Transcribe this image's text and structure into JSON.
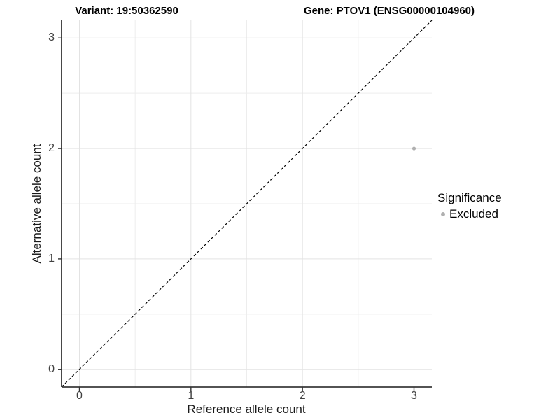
{
  "figure": {
    "background": "#ffffff"
  },
  "chart_data": {
    "type": "scatter",
    "titles": {
      "left": "Variant: 19:50362590",
      "right": "Gene: PTOV1 (ENSG00000104960)"
    },
    "xlabel": "Reference allele count",
    "ylabel": "Alternative allele count",
    "x_ticks": [
      0,
      1,
      2,
      3
    ],
    "y_ticks": [
      0,
      1,
      2,
      3
    ],
    "xlim": [
      -0.16,
      3.16
    ],
    "ylim": [
      -0.16,
      3.16
    ],
    "grid": {
      "major_step": 1,
      "minor_step": 0.5,
      "major_color": "#e3e3e3",
      "minor_color": "#ededed"
    },
    "reference_line": {
      "kind": "y=x",
      "style": "dashed",
      "color": "#000000"
    },
    "axis": {
      "color": "#1a1a1a",
      "tick_color": "#333333",
      "tick_length": 5
    },
    "series": [
      {
        "name": "Excluded",
        "color": "#b0b0b0",
        "point_radius": 2.6,
        "points": [
          {
            "x": 3,
            "y": 2
          }
        ]
      }
    ],
    "legend": {
      "title": "Significance",
      "position": "right",
      "entries": [
        {
          "label": "Excluded",
          "color": "#b0b0b0"
        }
      ]
    }
  }
}
